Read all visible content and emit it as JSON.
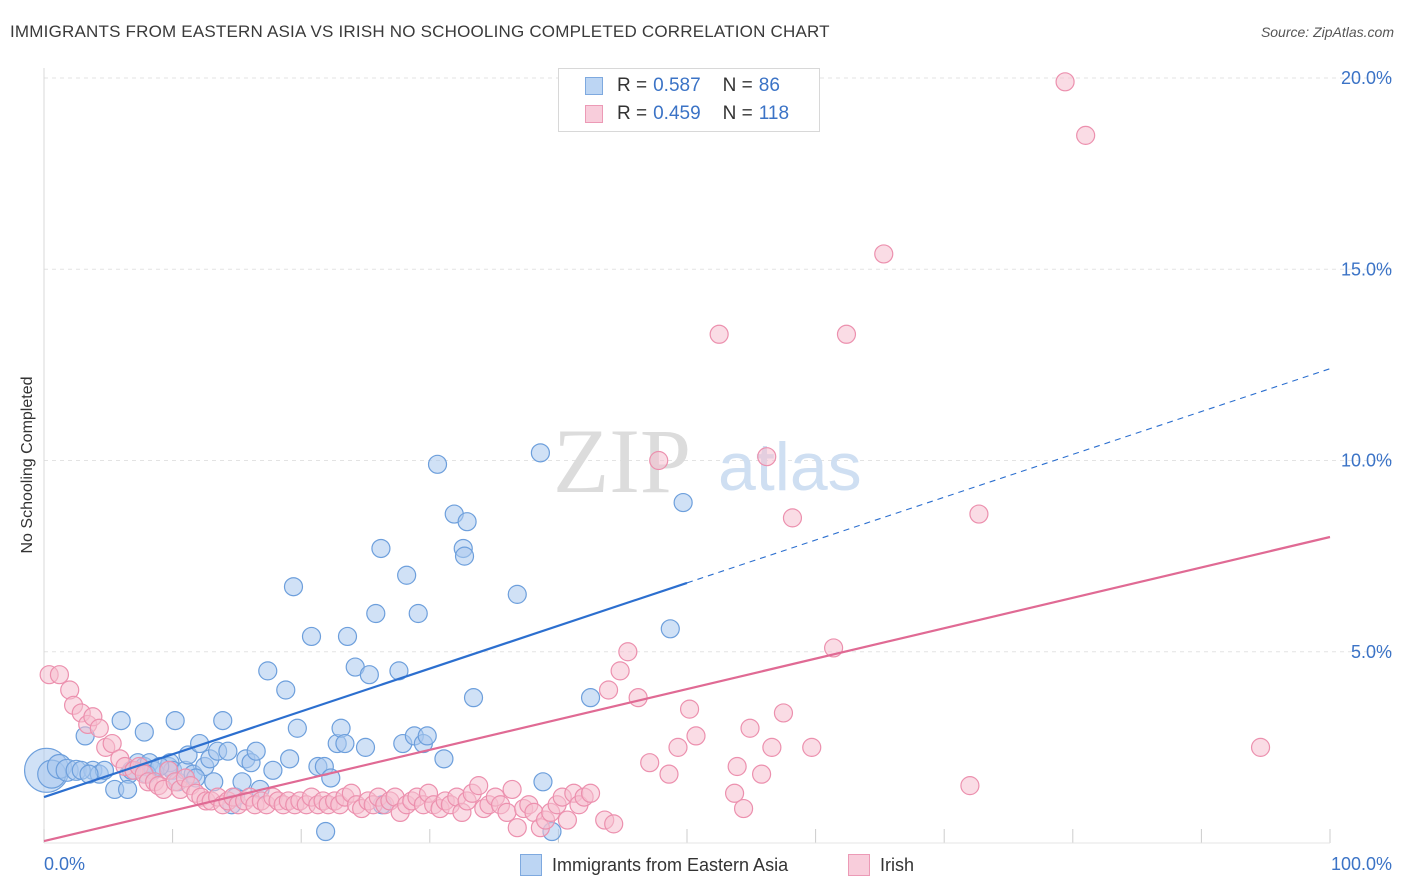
{
  "title": "IMMIGRANTS FROM EASTERN ASIA VS IRISH NO SCHOOLING COMPLETED CORRELATION CHART",
  "source": "Source: ZipAtlas.com",
  "watermark": {
    "zip": "ZIP",
    "atlas": "atlas"
  },
  "legend": {
    "series1": {
      "r_label": "R = ",
      "r_value": "0.587",
      "n_label": "N = ",
      "n_value": "86"
    },
    "series2": {
      "r_label": "R = ",
      "r_value": "0.459",
      "n_label": "N = ",
      "n_value": "118"
    }
  },
  "bottom_legend": {
    "series1": "Immigrants from Eastern Asia",
    "series2": "Irish"
  },
  "colors": {
    "blue_fill": "#a9c8ef",
    "blue_stroke": "#6d9fdc",
    "blue_line": "#2c6fcf",
    "pink_fill": "#f6bfd0",
    "pink_stroke": "#ec90ae",
    "pink_line": "#e06a94",
    "tick_label": "#3b73c6",
    "grid": "#e3e3e3"
  },
  "chart_data": {
    "type": "scatter",
    "title": "IMMIGRANTS FROM EASTERN ASIA VS IRISH NO SCHOOLING COMPLETED CORRELATION CHART",
    "xlabel": "",
    "ylabel": "No Schooling Completed",
    "xlim": [
      0,
      100
    ],
    "ylim": [
      0,
      20.5
    ],
    "x_tick_labels": [
      "0.0%",
      "100.0%"
    ],
    "y_ticks": [
      5,
      10,
      15,
      20
    ],
    "y_tick_labels": [
      "5.0%",
      "10.0%",
      "15.0%",
      "20.0%"
    ],
    "grid": true,
    "legend_position": "top-center",
    "series": [
      {
        "name": "Immigrants from Eastern Asia",
        "R": 0.587,
        "N": 86,
        "trend": {
          "x0": 0,
          "y0": 1.2,
          "x1": 50,
          "y1": 6.8,
          "dashed_to_x": 100,
          "dashed_to_y": 12.4
        },
        "points": [
          [
            0.2,
            1.9,
            22
          ],
          [
            0.6,
            1.8,
            14
          ],
          [
            1.2,
            2.0,
            12
          ],
          [
            1.8,
            1.9,
            11
          ],
          [
            2.5,
            1.9,
            10
          ],
          [
            3.2,
            2.8,
            9
          ],
          [
            3.8,
            1.9,
            9
          ],
          [
            4.3,
            1.8,
            9
          ],
          [
            4.7,
            1.9,
            9
          ],
          [
            5.5,
            1.4,
            9
          ],
          [
            6,
            3.2,
            9
          ],
          [
            6.6,
            1.8,
            9
          ],
          [
            6.5,
            1.4,
            9
          ],
          [
            7.3,
            2.1,
            9
          ],
          [
            7.8,
            2.0,
            9
          ],
          [
            7.8,
            2.9,
            9
          ],
          [
            8.2,
            2.1,
            9
          ],
          [
            8.5,
            1.9,
            9
          ],
          [
            9.7,
            2.0,
            9
          ],
          [
            9.8,
            2.1,
            9
          ],
          [
            10,
            1.9,
            9
          ],
          [
            10.2,
            3.2,
            9
          ],
          [
            10.4,
            1.6,
            9
          ],
          [
            11,
            1.9,
            9
          ],
          [
            11.2,
            2.3,
            9
          ],
          [
            11.6,
            1.8,
            9
          ],
          [
            12.1,
            2.6,
            9
          ],
          [
            12.5,
            2.0,
            9
          ],
          [
            12.9,
            2.2,
            9
          ],
          [
            13.2,
            1.6,
            9
          ],
          [
            13.5,
            2.4,
            9
          ],
          [
            13.9,
            3.2,
            9
          ],
          [
            14.3,
            2.4,
            9
          ],
          [
            14.9,
            1.2,
            9
          ],
          [
            15.4,
            1.6,
            9
          ],
          [
            15.7,
            2.2,
            9
          ],
          [
            16.1,
            2.1,
            9
          ],
          [
            16.5,
            2.4,
            9
          ],
          [
            16.8,
            1.4,
            9
          ],
          [
            17.4,
            4.5,
            9
          ],
          [
            17.8,
            1.9,
            9
          ],
          [
            18.8,
            4.0,
            9
          ],
          [
            19.1,
            2.2,
            9
          ],
          [
            19.4,
            6.7,
            9
          ],
          [
            19.7,
            3.0,
            9
          ],
          [
            20.8,
            5.4,
            9
          ],
          [
            21.3,
            2.0,
            9
          ],
          [
            21.8,
            2.0,
            9
          ],
          [
            21.9,
            0.3,
            9
          ],
          [
            22.3,
            1.7,
            9
          ],
          [
            22.8,
            2.6,
            9
          ],
          [
            23.1,
            3.0,
            9
          ],
          [
            23.4,
            2.6,
            9
          ],
          [
            23.6,
            5.4,
            9
          ],
          [
            24.2,
            4.6,
            9
          ],
          [
            25,
            2.5,
            9
          ],
          [
            25.3,
            4.4,
            9
          ],
          [
            25.8,
            6.0,
            9
          ],
          [
            26.2,
            7.7,
            9
          ],
          [
            26.3,
            1.0,
            9
          ],
          [
            27.6,
            4.5,
            9
          ],
          [
            27.9,
            2.6,
            9
          ],
          [
            28.2,
            7.0,
            9
          ],
          [
            28.8,
            2.8,
            9
          ],
          [
            29.1,
            6.0,
            9
          ],
          [
            29.5,
            2.6,
            9
          ],
          [
            29.8,
            2.8,
            9
          ],
          [
            30.6,
            9.9,
            9
          ],
          [
            31.1,
            2.2,
            9
          ],
          [
            31.9,
            8.6,
            9
          ],
          [
            32.6,
            7.7,
            9
          ],
          [
            32.7,
            7.5,
            9
          ],
          [
            32.9,
            8.4,
            9
          ],
          [
            33.4,
            3.8,
            9
          ],
          [
            36.8,
            6.5,
            9
          ],
          [
            38.6,
            10.2,
            9
          ],
          [
            38.8,
            1.6,
            9
          ],
          [
            39.5,
            0.3,
            9
          ],
          [
            42.5,
            3.8,
            9
          ],
          [
            48.7,
            5.6,
            9
          ],
          [
            49.7,
            8.9,
            9
          ],
          [
            6.8,
            1.9,
            9
          ],
          [
            8.0,
            1.8,
            9
          ],
          [
            9.0,
            2.0,
            9
          ],
          [
            11.8,
            1.7,
            9
          ],
          [
            14.6,
            1.0,
            9
          ],
          [
            2.9,
            1.9,
            9
          ],
          [
            3.5,
            1.8,
            9
          ]
        ]
      },
      {
        "name": "Irish",
        "R": 0.459,
        "N": 118,
        "trend": {
          "x0": 0,
          "y0": 0.05,
          "x1": 100,
          "y1": 8.0
        },
        "points": [
          [
            0.4,
            4.4,
            9
          ],
          [
            1.2,
            4.4,
            9
          ],
          [
            2,
            4.0,
            9
          ],
          [
            2.3,
            3.6,
            9
          ],
          [
            2.9,
            3.4,
            9
          ],
          [
            3.4,
            3.1,
            9
          ],
          [
            3.8,
            3.3,
            9
          ],
          [
            4.3,
            3.0,
            9
          ],
          [
            4.8,
            2.5,
            9
          ],
          [
            5.3,
            2.6,
            9
          ],
          [
            5.9,
            2.2,
            9
          ],
          [
            6.3,
            2.0,
            9
          ],
          [
            7,
            1.9,
            9
          ],
          [
            7.4,
            2.0,
            9
          ],
          [
            7.8,
            1.8,
            9
          ],
          [
            8.1,
            1.6,
            9
          ],
          [
            8.6,
            1.6,
            9
          ],
          [
            8.9,
            1.5,
            9
          ],
          [
            9.3,
            1.4,
            9
          ],
          [
            9.7,
            1.9,
            9
          ],
          [
            10.2,
            1.6,
            9
          ],
          [
            10.6,
            1.4,
            9
          ],
          [
            11,
            1.7,
            9
          ],
          [
            11.4,
            1.5,
            9
          ],
          [
            11.8,
            1.3,
            9
          ],
          [
            12.2,
            1.2,
            9
          ],
          [
            12.6,
            1.1,
            9
          ],
          [
            13,
            1.1,
            9
          ],
          [
            13.5,
            1.2,
            9
          ],
          [
            13.9,
            1.0,
            9
          ],
          [
            14.3,
            1.1,
            9
          ],
          [
            14.7,
            1.2,
            9
          ],
          [
            15.1,
            1.0,
            9
          ],
          [
            15.6,
            1.1,
            9
          ],
          [
            16,
            1.2,
            9
          ],
          [
            16.4,
            1.0,
            9
          ],
          [
            16.9,
            1.1,
            9
          ],
          [
            17.3,
            1.0,
            9
          ],
          [
            17.8,
            1.2,
            9
          ],
          [
            18.2,
            1.1,
            9
          ],
          [
            18.6,
            1.0,
            9
          ],
          [
            19,
            1.1,
            9
          ],
          [
            19.5,
            1.0,
            9
          ],
          [
            19.9,
            1.1,
            9
          ],
          [
            20.4,
            1.0,
            9
          ],
          [
            20.8,
            1.2,
            9
          ],
          [
            21.3,
            1.0,
            9
          ],
          [
            21.7,
            1.1,
            9
          ],
          [
            22.1,
            1.0,
            9
          ],
          [
            22.6,
            1.1,
            9
          ],
          [
            23,
            1.0,
            9
          ],
          [
            23.4,
            1.2,
            9
          ],
          [
            23.9,
            1.3,
            9
          ],
          [
            24.3,
            1.0,
            9
          ],
          [
            24.7,
            0.9,
            9
          ],
          [
            25.2,
            1.1,
            9
          ],
          [
            25.6,
            1.0,
            9
          ],
          [
            26,
            1.2,
            9
          ],
          [
            26.5,
            1.0,
            9
          ],
          [
            26.9,
            1.1,
            9
          ],
          [
            27.3,
            1.2,
            9
          ],
          [
            27.7,
            0.8,
            9
          ],
          [
            28.2,
            1.0,
            9
          ],
          [
            28.6,
            1.1,
            9
          ],
          [
            29,
            1.2,
            9
          ],
          [
            29.5,
            1.0,
            9
          ],
          [
            29.9,
            1.3,
            9
          ],
          [
            30.3,
            1.0,
            9
          ],
          [
            30.8,
            0.9,
            9
          ],
          [
            31.2,
            1.1,
            9
          ],
          [
            31.6,
            1.0,
            9
          ],
          [
            32.1,
            1.2,
            9
          ],
          [
            32.5,
            0.8,
            9
          ],
          [
            32.9,
            1.1,
            9
          ],
          [
            33.3,
            1.3,
            9
          ],
          [
            33.8,
            1.5,
            9
          ],
          [
            34.2,
            0.9,
            9
          ],
          [
            34.6,
            1.0,
            9
          ],
          [
            35.1,
            1.2,
            9
          ],
          [
            35.5,
            1.0,
            9
          ],
          [
            36,
            0.8,
            9
          ],
          [
            36.4,
            1.4,
            9
          ],
          [
            36.8,
            0.4,
            9
          ],
          [
            37.3,
            0.9,
            9
          ],
          [
            37.7,
            1.0,
            9
          ],
          [
            38.1,
            0.8,
            9
          ],
          [
            38.6,
            0.4,
            9
          ],
          [
            39,
            0.6,
            9
          ],
          [
            39.4,
            0.8,
            9
          ],
          [
            39.9,
            1.0,
            9
          ],
          [
            40.3,
            1.2,
            9
          ],
          [
            40.7,
            0.6,
            9
          ],
          [
            41.2,
            1.3,
            9
          ],
          [
            41.6,
            1.0,
            9
          ],
          [
            42,
            1.2,
            9
          ],
          [
            42.5,
            1.3,
            9
          ],
          [
            43.6,
            0.6,
            9
          ],
          [
            44.3,
            0.5,
            9
          ],
          [
            43.9,
            4.0,
            9
          ],
          [
            44.8,
            4.5,
            9
          ],
          [
            45.4,
            5.0,
            9
          ],
          [
            46.2,
            3.8,
            9
          ],
          [
            47.1,
            2.1,
            9
          ],
          [
            47.8,
            10.0,
            9
          ],
          [
            48.6,
            1.8,
            9
          ],
          [
            49.3,
            2.5,
            9
          ],
          [
            50.2,
            3.5,
            9
          ],
          [
            50.7,
            2.8,
            9
          ],
          [
            52.5,
            13.3,
            9
          ],
          [
            53.7,
            1.3,
            9
          ],
          [
            53.9,
            2.0,
            9
          ],
          [
            54.4,
            0.9,
            9
          ],
          [
            54.9,
            3.0,
            9
          ],
          [
            55.8,
            1.8,
            9
          ],
          [
            56.2,
            10.1,
            9
          ],
          [
            56.6,
            2.5,
            9
          ],
          [
            57.5,
            3.4,
            9
          ],
          [
            58.2,
            8.5,
            9
          ],
          [
            59.7,
            2.5,
            9
          ],
          [
            61.4,
            5.1,
            9
          ],
          [
            62.4,
            13.3,
            9
          ],
          [
            65.3,
            15.4,
            9
          ],
          [
            72,
            1.5,
            9
          ],
          [
            72.7,
            8.6,
            9
          ],
          [
            79.4,
            19.9,
            9
          ],
          [
            81,
            18.5,
            9
          ],
          [
            94.6,
            2.5,
            9
          ]
        ]
      }
    ]
  }
}
